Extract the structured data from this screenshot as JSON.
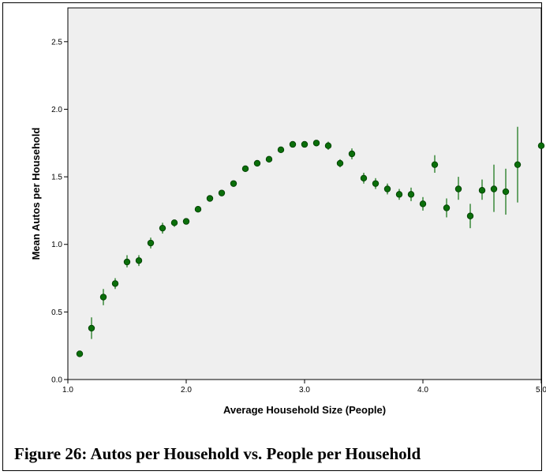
{
  "caption": "Figure 26: Autos per Household vs. People per Household",
  "chart_data": {
    "type": "scatter",
    "title": "",
    "xlabel": "Average Household Size (People)",
    "ylabel": "Mean Autos per Household",
    "xlim": [
      1.0,
      5.0
    ],
    "ylim": [
      0.0,
      2.75
    ],
    "x_ticks": [
      "1.0",
      "2.0",
      "3.0",
      "4.0",
      "5.0"
    ],
    "y_ticks": [
      "0.0",
      "0.5",
      "1.0",
      "1.5",
      "2.0",
      "2.5"
    ],
    "grid": false,
    "error_bars": true,
    "marker_color": "#0a6e0a",
    "bar_color": "#1f7a1f",
    "plot_background": "#efefef",
    "points": [
      {
        "x": 1.1,
        "y": 0.19,
        "lo": 0.18,
        "hi": 0.2
      },
      {
        "x": 1.2,
        "y": 0.38,
        "lo": 0.3,
        "hi": 0.46
      },
      {
        "x": 1.3,
        "y": 0.61,
        "lo": 0.55,
        "hi": 0.67
      },
      {
        "x": 1.4,
        "y": 0.71,
        "lo": 0.67,
        "hi": 0.75
      },
      {
        "x": 1.5,
        "y": 0.87,
        "lo": 0.83,
        "hi": 0.92
      },
      {
        "x": 1.6,
        "y": 0.88,
        "lo": 0.84,
        "hi": 0.92
      },
      {
        "x": 1.7,
        "y": 1.01,
        "lo": 0.97,
        "hi": 1.05
      },
      {
        "x": 1.8,
        "y": 1.12,
        "lo": 1.08,
        "hi": 1.16
      },
      {
        "x": 1.9,
        "y": 1.16,
        "lo": 1.13,
        "hi": 1.18
      },
      {
        "x": 2.0,
        "y": 1.17,
        "lo": 1.15,
        "hi": 1.19
      },
      {
        "x": 2.1,
        "y": 1.26,
        "lo": 1.24,
        "hi": 1.28
      },
      {
        "x": 2.2,
        "y": 1.34,
        "lo": 1.32,
        "hi": 1.36
      },
      {
        "x": 2.3,
        "y": 1.38,
        "lo": 1.36,
        "hi": 1.4
      },
      {
        "x": 2.4,
        "y": 1.45,
        "lo": 1.43,
        "hi": 1.47
      },
      {
        "x": 2.5,
        "y": 1.56,
        "lo": 1.54,
        "hi": 1.58
      },
      {
        "x": 2.6,
        "y": 1.6,
        "lo": 1.58,
        "hi": 1.62
      },
      {
        "x": 2.7,
        "y": 1.63,
        "lo": 1.61,
        "hi": 1.65
      },
      {
        "x": 2.8,
        "y": 1.7,
        "lo": 1.68,
        "hi": 1.72
      },
      {
        "x": 2.9,
        "y": 1.74,
        "lo": 1.72,
        "hi": 1.76
      },
      {
        "x": 3.0,
        "y": 1.74,
        "lo": 1.72,
        "hi": 1.76
      },
      {
        "x": 3.1,
        "y": 1.75,
        "lo": 1.73,
        "hi": 1.77
      },
      {
        "x": 3.2,
        "y": 1.73,
        "lo": 1.7,
        "hi": 1.76
      },
      {
        "x": 3.3,
        "y": 1.6,
        "lo": 1.57,
        "hi": 1.63
      },
      {
        "x": 3.4,
        "y": 1.67,
        "lo": 1.63,
        "hi": 1.71
      },
      {
        "x": 3.5,
        "y": 1.49,
        "lo": 1.45,
        "hi": 1.53
      },
      {
        "x": 3.6,
        "y": 1.45,
        "lo": 1.41,
        "hi": 1.49
      },
      {
        "x": 3.7,
        "y": 1.41,
        "lo": 1.37,
        "hi": 1.45
      },
      {
        "x": 3.8,
        "y": 1.37,
        "lo": 1.33,
        "hi": 1.41
      },
      {
        "x": 3.9,
        "y": 1.37,
        "lo": 1.32,
        "hi": 1.42
      },
      {
        "x": 4.0,
        "y": 1.3,
        "lo": 1.25,
        "hi": 1.35
      },
      {
        "x": 4.1,
        "y": 1.59,
        "lo": 1.53,
        "hi": 1.66
      },
      {
        "x": 4.2,
        "y": 1.27,
        "lo": 1.2,
        "hi": 1.34
      },
      {
        "x": 4.3,
        "y": 1.41,
        "lo": 1.33,
        "hi": 1.5
      },
      {
        "x": 4.4,
        "y": 1.21,
        "lo": 1.12,
        "hi": 1.3
      },
      {
        "x": 4.5,
        "y": 1.4,
        "lo": 1.33,
        "hi": 1.48
      },
      {
        "x": 4.6,
        "y": 1.41,
        "lo": 1.24,
        "hi": 1.59
      },
      {
        "x": 4.7,
        "y": 1.39,
        "lo": 1.22,
        "hi": 1.56
      },
      {
        "x": 4.8,
        "y": 1.59,
        "lo": 1.31,
        "hi": 1.87
      },
      {
        "x": 5.0,
        "y": 1.73,
        "lo": 1.71,
        "hi": 1.75
      }
    ]
  }
}
